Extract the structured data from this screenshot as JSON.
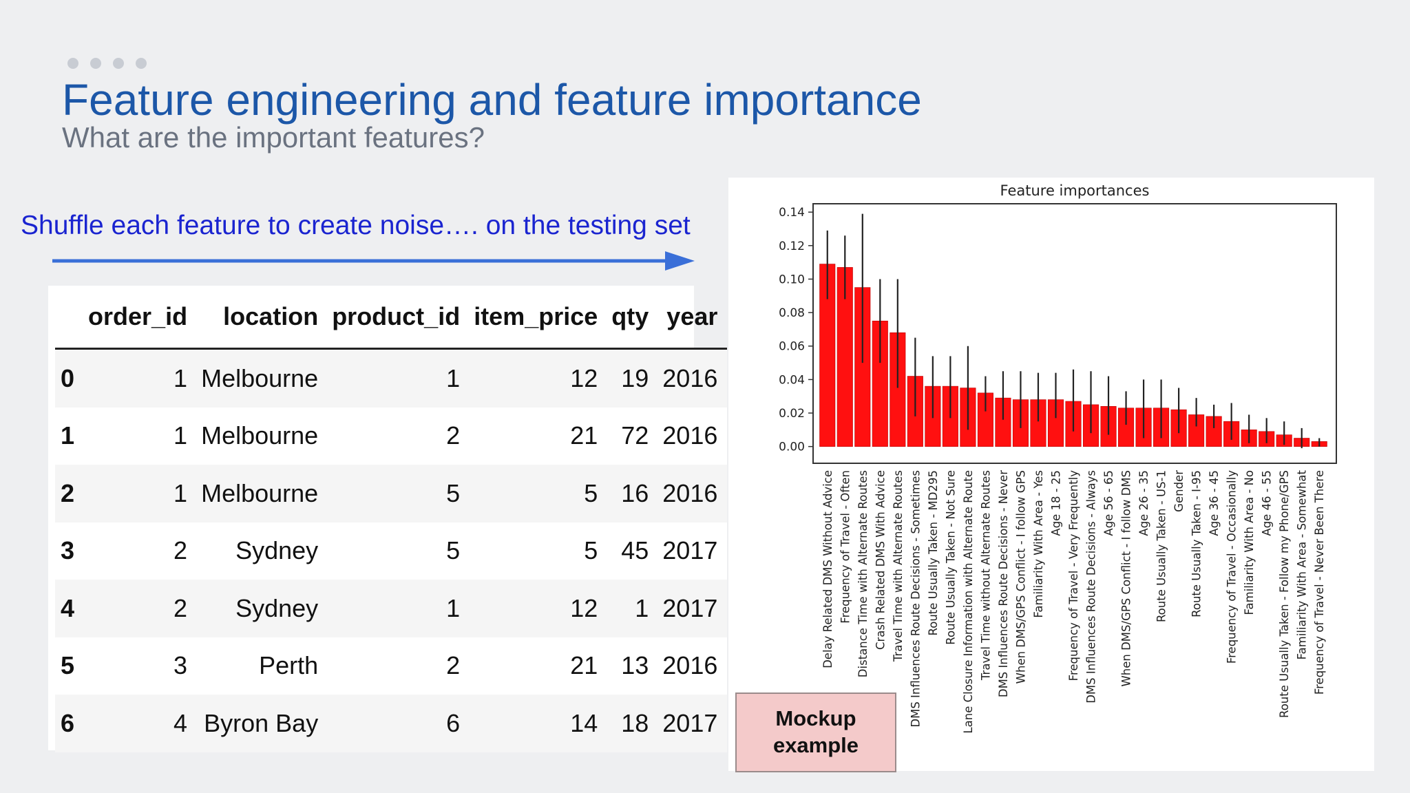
{
  "slide": {
    "title": "Feature engineering and feature importance",
    "subtitle": "What are the important features?",
    "shuffle_text": "Shuffle each feature to create noise…. on the testing set",
    "mockup_line1": "Mockup",
    "mockup_line2": "example",
    "colors": {
      "title": "#1c57a8",
      "subtitle": "#6a7280",
      "shuffle": "#1a24d0",
      "arrow": "#3a6fd8",
      "bar": "#ff1010"
    }
  },
  "table": {
    "columns": [
      "",
      "order_id",
      "location",
      "product_id",
      "item_price",
      "qty",
      "year"
    ],
    "rows": [
      [
        "0",
        "1",
        "Melbourne",
        "1",
        "12",
        "19",
        "2016"
      ],
      [
        "1",
        "1",
        "Melbourne",
        "2",
        "21",
        "72",
        "2016"
      ],
      [
        "2",
        "1",
        "Melbourne",
        "5",
        "5",
        "16",
        "2016"
      ],
      [
        "3",
        "2",
        "Sydney",
        "5",
        "5",
        "45",
        "2017"
      ],
      [
        "4",
        "2",
        "Sydney",
        "1",
        "12",
        "1",
        "2017"
      ],
      [
        "5",
        "3",
        "Perth",
        "2",
        "21",
        "13",
        "2016"
      ],
      [
        "6",
        "4",
        "Byron Bay",
        "6",
        "14",
        "18",
        "2017"
      ]
    ]
  },
  "chart_data": {
    "type": "bar",
    "title": "Feature importances",
    "xlabel": "",
    "ylabel": "",
    "ylim": [
      -0.01,
      0.145
    ],
    "yticks": [
      "0.00",
      "0.02",
      "0.04",
      "0.06",
      "0.08",
      "0.10",
      "0.12",
      "0.14"
    ],
    "ytick_values": [
      0.0,
      0.02,
      0.04,
      0.06,
      0.08,
      0.1,
      0.12,
      0.14
    ],
    "grid": false,
    "categories": [
      "Delay Related DMS Without Advice",
      "Frequency of Travel - Often",
      "Distance Time with Alternate Routes",
      "Crash Related DMS With Advice",
      "Travel Time with Alternate Routes",
      "DMS Influences Route Decisions - Sometimes",
      "Route Usually Taken - MD295",
      "Route Usually Taken - Not Sure",
      "Lane Closure Information with Alternate Route",
      "Travel Time without Alternate Routes",
      "DMS Influences Route Decisions - Never",
      "When DMS/GPS Conflict - I follow GPS",
      "Familiarity With Area - Yes",
      "Age 18 - 25",
      "Frequency of Travel - Very Frequently",
      "DMS Influences Route Decisions - Always",
      "Age 56 - 65",
      "When DMS/GPS Conflict - I follow DMS",
      "Age 26 - 35",
      "Route Usually Taken - US-1",
      "Gender",
      "Route Usually Taken - I-95",
      "Age 36 - 45",
      "Frequency of Travel - Occasionally",
      "Familiarity With Area - No",
      "Age 46 - 55",
      "Route Usually Taken - Follow my Phone/GPS",
      "Familiarity With Area - Somewhat",
      "Frequency of Travel - Never Been There"
    ],
    "values": [
      0.109,
      0.107,
      0.095,
      0.075,
      0.068,
      0.042,
      0.036,
      0.036,
      0.035,
      0.032,
      0.029,
      0.028,
      0.028,
      0.028,
      0.027,
      0.025,
      0.024,
      0.023,
      0.023,
      0.023,
      0.022,
      0.019,
      0.018,
      0.015,
      0.01,
      0.009,
      0.007,
      0.005,
      0.003
    ],
    "error_low": [
      0.088,
      0.088,
      0.05,
      0.05,
      0.035,
      0.018,
      0.017,
      0.017,
      0.01,
      0.021,
      0.016,
      0.011,
      0.015,
      0.017,
      0.009,
      0.008,
      0.007,
      0.013,
      0.005,
      0.005,
      0.008,
      0.012,
      0.011,
      0.004,
      0.002,
      0.002,
      0.001,
      -0.001,
      0.0
    ],
    "error_high": [
      0.129,
      0.126,
      0.139,
      0.1,
      0.1,
      0.065,
      0.054,
      0.054,
      0.06,
      0.042,
      0.045,
      0.045,
      0.044,
      0.044,
      0.046,
      0.045,
      0.042,
      0.033,
      0.04,
      0.04,
      0.035,
      0.029,
      0.025,
      0.026,
      0.019,
      0.017,
      0.015,
      0.011,
      0.005
    ]
  }
}
